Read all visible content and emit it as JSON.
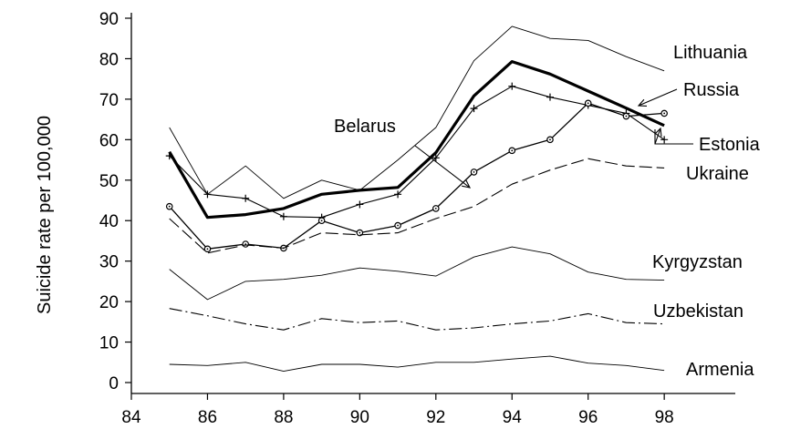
{
  "chart_data": {
    "type": "line",
    "xlabel": "",
    "ylabel": "Suicide rate per 100,000",
    "xlim": [
      84,
      100
    ],
    "ylim": [
      0,
      90
    ],
    "x_ticks": [
      "84",
      "86",
      "88",
      "90",
      "92",
      "94",
      "96",
      "98"
    ],
    "y_ticks": [
      "0",
      "10",
      "20",
      "30",
      "40",
      "50",
      "60",
      "70",
      "80",
      "90"
    ],
    "grid": false,
    "legend": "inline labels",
    "x": [
      85,
      86,
      87,
      88,
      89,
      90,
      91,
      92,
      93,
      94,
      95,
      96,
      97,
      98
    ],
    "series": [
      {
        "name": "Lithuania",
        "style": "thin",
        "values": [
          63,
          46.5,
          53.5,
          45.5,
          50,
          47.5,
          55,
          63,
          79.5,
          88,
          85,
          84.5,
          80.5,
          77
        ]
      },
      {
        "name": "Russia",
        "style": "thick",
        "values": [
          57,
          40.8,
          41.5,
          43,
          46.5,
          47.5,
          48.2,
          56.8,
          70.8,
          79.3,
          76.2,
          72,
          67.8,
          63.5
        ]
      },
      {
        "name": "Estonia",
        "style": "plus",
        "values": [
          56,
          46.5,
          45.5,
          41,
          40.8,
          44,
          46.5,
          55.5,
          67.7,
          73.2,
          70.5,
          68.5,
          66.5,
          60
        ]
      },
      {
        "name": "Belarus",
        "style": "circle",
        "values": [
          43.5,
          33,
          34.2,
          33.2,
          40,
          37,
          38.8,
          43,
          52,
          57.3,
          60,
          69,
          65.8,
          66.5
        ]
      },
      {
        "name": "Ukraine",
        "style": "dash",
        "values": [
          40.5,
          32,
          34,
          33.2,
          37,
          36.5,
          37,
          40.5,
          43.5,
          49,
          52.5,
          55.3,
          53.5,
          53
        ]
      },
      {
        "name": "Kyrgyzstan",
        "style": "thin",
        "values": [
          28,
          20.5,
          25,
          25.5,
          26.5,
          28.3,
          27.5,
          26.3,
          31,
          33.5,
          31.8,
          27.3,
          25.5,
          25.3
        ]
      },
      {
        "name": "Uzbekistan",
        "style": "dashdot",
        "values": [
          18.3,
          16.5,
          14.5,
          13,
          15.8,
          14.8,
          15.2,
          13,
          13.5,
          14.5,
          15.2,
          17,
          14.8,
          14.5
        ]
      },
      {
        "name": "Armenia",
        "style": "thin",
        "values": [
          4.5,
          4.2,
          5,
          2.8,
          4.5,
          4.5,
          3.8,
          5,
          5,
          5.8,
          6.5,
          4.8,
          4.2,
          3
        ]
      }
    ],
    "annotations": [
      {
        "text": "Lithuania",
        "series": "Lithuania"
      },
      {
        "text": "Russia",
        "series": "Russia"
      },
      {
        "text": "Belarus",
        "series": "Belarus"
      },
      {
        "text": "Estonia",
        "series": "Estonia"
      },
      {
        "text": "Ukraine",
        "series": "Ukraine"
      },
      {
        "text": "Kyrgyzstan",
        "series": "Kyrgyzstan"
      },
      {
        "text": "Uzbekistan",
        "series": "Uzbekistan"
      },
      {
        "text": "Armenia",
        "series": "Armenia"
      }
    ]
  }
}
